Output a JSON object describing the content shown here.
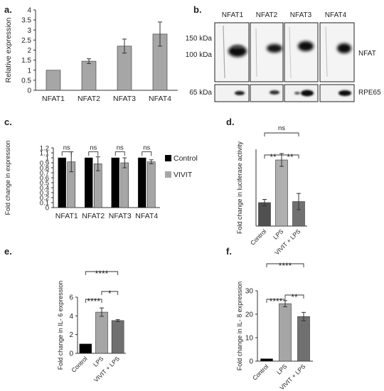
{
  "panels": {
    "a": "a.",
    "b": "b.",
    "c": "c.",
    "d": "d.",
    "e": "e.",
    "f": "f."
  },
  "chart_data": [
    {
      "id": "a",
      "type": "bar",
      "ylabel": "Relative expression",
      "categories": [
        "NFAT1",
        "NFAT2",
        "NFAT3",
        "NFAT4"
      ],
      "values": [
        1.0,
        1.45,
        2.2,
        2.8
      ],
      "errors": [
        0,
        0.12,
        0.35,
        0.6
      ],
      "ylim": [
        0,
        4
      ],
      "yticks": [
        0,
        0.5,
        1,
        1.5,
        2,
        2.5,
        3,
        3.5,
        4
      ],
      "color": "#a6a6a6"
    },
    {
      "id": "c",
      "type": "bar",
      "ylabel": "Fold change in  expression",
      "categories": [
        "NFAT1",
        "NFAT2",
        "NFAT3",
        "NFAT4"
      ],
      "series": [
        {
          "name": "Control",
          "values": [
            1.0,
            1.0,
            1.0,
            1.0
          ],
          "errors": [
            0,
            0,
            0,
            0
          ],
          "color": "#000000"
        },
        {
          "name": "VIVIT",
          "values": [
            0.92,
            0.88,
            0.9,
            0.92
          ],
          "errors": [
            0.2,
            0.14,
            0.1,
            0.04
          ],
          "color": "#a6a6a6"
        }
      ],
      "significance": [
        "ns",
        "ns",
        "ns",
        "ns"
      ],
      "ylim": [
        0,
        1.2
      ],
      "yticks": [
        0,
        0.1,
        0.2,
        0.3,
        0.4,
        0.5,
        0.6,
        0.7,
        0.8,
        0.9,
        1,
        1.1,
        1.2
      ]
    },
    {
      "id": "d",
      "type": "bar",
      "ylabel": "Fold change in luciferase activity",
      "categories": [
        "Control",
        "LPS",
        "VIVIT + LPS"
      ],
      "values": [
        1.1,
        3.1,
        1.15
      ],
      "errors": [
        0.15,
        0.3,
        0.38
      ],
      "colors": [
        "#505050",
        "#b0b0b0",
        "#707070"
      ],
      "ylim": [
        0,
        3.6
      ],
      "annotations": [
        {
          "from": 0,
          "to": 1,
          "text": "**"
        },
        {
          "from": 1,
          "to": 2,
          "text": "**"
        },
        {
          "from": 0,
          "to": 2,
          "text": "ns"
        }
      ]
    },
    {
      "id": "e",
      "type": "bar",
      "ylabel": "Fold change in IL- 6 expression",
      "categories": [
        "Control",
        "LPS",
        "VIVIT + LPS"
      ],
      "values": [
        1.0,
        4.4,
        3.5
      ],
      "errors": [
        0,
        0.45,
        0.1
      ],
      "colors": [
        "#000000",
        "#a6a6a6",
        "#707070"
      ],
      "ylim": [
        0,
        6
      ],
      "yticks": [
        0,
        2,
        4,
        6
      ],
      "annotations": [
        {
          "from": 0,
          "to": 1,
          "text": "****"
        },
        {
          "from": 1,
          "to": 2,
          "text": "*"
        },
        {
          "from": 0,
          "to": 2,
          "text": "****"
        }
      ]
    },
    {
      "id": "f",
      "type": "bar",
      "ylabel": "Fold change in IL- 8 expression",
      "categories": [
        "Control",
        "LPS",
        "VIVIT + LPS"
      ],
      "values": [
        1.0,
        24.5,
        19.0
      ],
      "errors": [
        0,
        1.3,
        1.8
      ],
      "colors": [
        "#000000",
        "#a6a6a6",
        "#707070"
      ],
      "ylim": [
        0,
        30
      ],
      "yticks": [
        0,
        10,
        20,
        30
      ],
      "annotations": [
        {
          "from": 0,
          "to": 1,
          "text": "****"
        },
        {
          "from": 1,
          "to": 2,
          "text": "**"
        },
        {
          "from": 0,
          "to": 2,
          "text": "****"
        }
      ]
    }
  ],
  "blot": {
    "lanes": [
      "NFAT1",
      "NFAT2",
      "NFAT3",
      "NFAT4"
    ],
    "markers": [
      "150 kDa",
      "100 kDa"
    ],
    "loading_marker": "65 kDa",
    "protein_label": "NFAT",
    "loading_label": "RPE65"
  }
}
